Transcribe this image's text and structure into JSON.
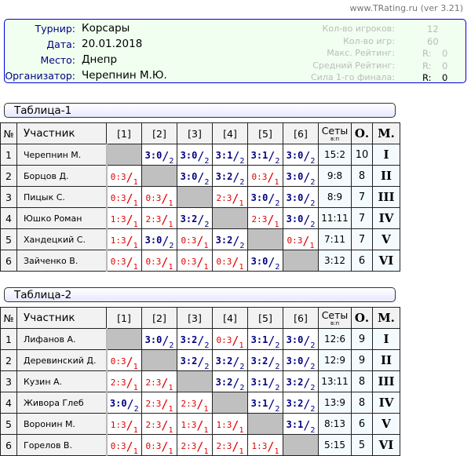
{
  "version": "www.TRating.ru (ver 3.21)",
  "info": {
    "fields": [
      {
        "label": "Турнир:",
        "value": "Корсары"
      },
      {
        "label": "Дата:",
        "value": "20.01.2018"
      },
      {
        "label": "Место:",
        "value": "Днепр"
      },
      {
        "label": "Организатор:",
        "value": "Черепнин М.Ю."
      }
    ],
    "stats": [
      {
        "label": "Кол-во игроков:",
        "value": "12",
        "r": ""
      },
      {
        "label": "Кол-во игр:",
        "value": "60",
        "r": ""
      },
      {
        "label": "Макс. Рейтинг:",
        "value": "0",
        "r": "R:"
      },
      {
        "label": "Средний Рейтинг:",
        "value": "0",
        "r": "R:"
      },
      {
        "label": "Сила 1-го финала:",
        "value": "0",
        "r": "R:",
        "highlight": true
      }
    ]
  },
  "colors": {
    "win": "#000080",
    "loss": "#e00000",
    "diagonal": "#c0c0c0",
    "border": "#0000e0",
    "info_bg": "#f0fff0"
  },
  "headers": {
    "num": "№",
    "name": "Участник",
    "cols": [
      "[1]",
      "[2]",
      "[3]",
      "[4]",
      "[5]",
      "[6]"
    ],
    "sets": "Сеты",
    "sets_sub": "в:п",
    "points": "О.",
    "place": "М."
  },
  "tables": [
    {
      "title": "Таблица-1",
      "rows": [
        {
          "n": "1",
          "name": "Черепнин М.",
          "cells": [
            null,
            [
              "3:0",
              "2"
            ],
            [
              "3:0",
              "2"
            ],
            [
              "3:1",
              "2"
            ],
            [
              "3:1",
              "2"
            ],
            [
              "3:0",
              "2"
            ]
          ],
          "sets": "15:2",
          "points": "10",
          "place": "I"
        },
        {
          "n": "2",
          "name": "Борцов Д.",
          "cells": [
            [
              "0:3",
              "1"
            ],
            null,
            [
              "3:0",
              "2"
            ],
            [
              "3:2",
              "2"
            ],
            [
              "0:3",
              "1"
            ],
            [
              "3:0",
              "2"
            ]
          ],
          "sets": "9:8",
          "points": "8",
          "place": "II"
        },
        {
          "n": "3",
          "name": "Пицык С.",
          "cells": [
            [
              "0:3",
              "1"
            ],
            [
              "0:3",
              "1"
            ],
            null,
            [
              "2:3",
              "1"
            ],
            [
              "3:0",
              "2"
            ],
            [
              "3:0",
              "2"
            ]
          ],
          "sets": "8:9",
          "points": "7",
          "place": "III"
        },
        {
          "n": "4",
          "name": "Юшко Роман",
          "cells": [
            [
              "1:3",
              "1"
            ],
            [
              "2:3",
              "1"
            ],
            [
              "3:2",
              "2"
            ],
            null,
            [
              "2:3",
              "1"
            ],
            [
              "3:0",
              "2"
            ]
          ],
          "sets": "11:11",
          "points": "7",
          "place": "IV"
        },
        {
          "n": "5",
          "name": "Хандецкий С.",
          "cells": [
            [
              "1:3",
              "1"
            ],
            [
              "3:0",
              "2"
            ],
            [
              "0:3",
              "1"
            ],
            [
              "3:2",
              "2"
            ],
            null,
            [
              "0:3",
              "1"
            ]
          ],
          "sets": "7:11",
          "points": "7",
          "place": "V"
        },
        {
          "n": "6",
          "name": "Зайченко В.",
          "cells": [
            [
              "0:3",
              "1"
            ],
            [
              "0:3",
              "1"
            ],
            [
              "0:3",
              "1"
            ],
            [
              "0:3",
              "1"
            ],
            [
              "3:0",
              "2"
            ],
            null
          ],
          "sets": "3:12",
          "points": "6",
          "place": "VI"
        }
      ]
    },
    {
      "title": "Таблица-2",
      "rows": [
        {
          "n": "1",
          "name": "Лифанов А.",
          "cells": [
            null,
            [
              "3:0",
              "2"
            ],
            [
              "3:2",
              "2"
            ],
            [
              "0:3",
              "1"
            ],
            [
              "3:1",
              "2"
            ],
            [
              "3:0",
              "2"
            ]
          ],
          "sets": "12:6",
          "points": "9",
          "place": "I"
        },
        {
          "n": "2",
          "name": "Деревинский Д.",
          "cells": [
            [
              "0:3",
              "1"
            ],
            null,
            [
              "3:2",
              "2"
            ],
            [
              "3:2",
              "2"
            ],
            [
              "3:2",
              "2"
            ],
            [
              "3:0",
              "2"
            ]
          ],
          "sets": "12:9",
          "points": "9",
          "place": "II"
        },
        {
          "n": "3",
          "name": "Кузин А.",
          "cells": [
            [
              "2:3",
              "1"
            ],
            [
              "2:3",
              "1"
            ],
            null,
            [
              "3:2",
              "2"
            ],
            [
              "3:1",
              "2"
            ],
            [
              "3:2",
              "2"
            ]
          ],
          "sets": "13:11",
          "points": "8",
          "place": "III"
        },
        {
          "n": "4",
          "name": "Живора Глеб",
          "cells": [
            [
              "3:0",
              "2"
            ],
            [
              "2:3",
              "1"
            ],
            [
              "2:3",
              "1"
            ],
            null,
            [
              "3:1",
              "2"
            ],
            [
              "3:2",
              "2"
            ]
          ],
          "sets": "13:9",
          "points": "8",
          "place": "IV"
        },
        {
          "n": "5",
          "name": "Воронин М.",
          "cells": [
            [
              "1:3",
              "1"
            ],
            [
              "2:3",
              "1"
            ],
            [
              "1:3",
              "1"
            ],
            [
              "1:3",
              "1"
            ],
            null,
            [
              "3:1",
              "2"
            ]
          ],
          "sets": "8:13",
          "points": "6",
          "place": "V"
        },
        {
          "n": "6",
          "name": "Горелов В.",
          "cells": [
            [
              "0:3",
              "1"
            ],
            [
              "0:3",
              "1"
            ],
            [
              "2:3",
              "1"
            ],
            [
              "2:3",
              "1"
            ],
            [
              "1:3",
              "1"
            ],
            null
          ],
          "sets": "5:15",
          "points": "5",
          "place": "VI"
        }
      ]
    }
  ]
}
